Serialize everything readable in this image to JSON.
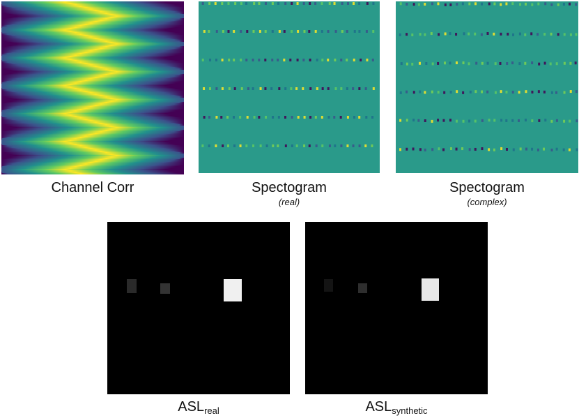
{
  "panels": {
    "channel_corr": {
      "title": "Channel Corr"
    },
    "spec_real": {
      "title": "Spectogram",
      "subtitle": "(real)"
    },
    "spec_complex": {
      "title": "Spectogram",
      "subtitle": "(complex)"
    },
    "asl_real": {
      "title_main": "ASL",
      "title_sub": "real"
    },
    "asl_synthetic": {
      "title_main": "ASL",
      "title_sub": "synthetic"
    }
  },
  "colors": {
    "viridis_dark": "#440154",
    "viridis_blue": "#3b528b",
    "viridis_teal": "#21918c",
    "viridis_green": "#5ec962",
    "viridis_yellow": "#fde725",
    "spectrogram_bg": "#2a9a8a",
    "asl_bg": "#000000"
  }
}
